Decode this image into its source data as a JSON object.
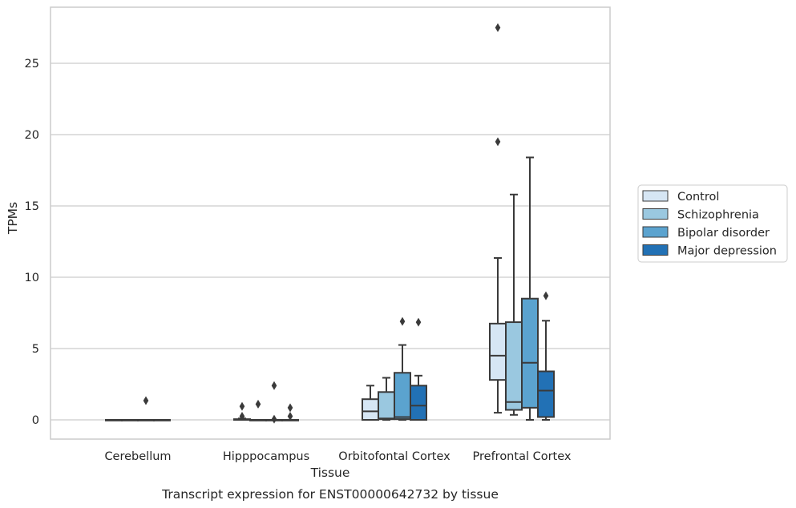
{
  "chart_data": {
    "type": "boxplot",
    "title": "",
    "caption": "Transcript expression for ENST00000642732 by tissue",
    "xlabel": "Tissue",
    "ylabel": "TPMs",
    "ylim": [
      -1.3,
      28.6
    ],
    "yticks": [
      0,
      5,
      10,
      15,
      20,
      25
    ],
    "grid": "horizontal",
    "legend_position": "right",
    "categories": [
      "Cerebellum",
      "Hipppocampus",
      "Orbitofontal Cortex",
      "Prefrontal Cortex"
    ],
    "series": [
      {
        "name": "Control",
        "color": "#d6e6f4",
        "boxes": [
          {
            "min": 0,
            "q1": 0,
            "median": 0,
            "q3": 0,
            "max": 0,
            "outliers": []
          },
          {
            "min": 0,
            "q1": 0,
            "median": 0,
            "q3": 0.05,
            "max": 0.1,
            "outliers": [
              0.25,
              0.95
            ]
          },
          {
            "min": 0,
            "q1": 0,
            "median": 0.6,
            "q3": 1.45,
            "max": 2.4,
            "outliers": []
          },
          {
            "min": 0.5,
            "q1": 2.8,
            "median": 4.5,
            "q3": 6.75,
            "max": 11.35,
            "outliers": [
              19.5,
              27.5
            ]
          }
        ]
      },
      {
        "name": "Schizophrenia",
        "color": "#9ac8e0",
        "boxes": [
          {
            "min": 0,
            "q1": 0,
            "median": 0,
            "q3": 0,
            "max": 0,
            "outliers": []
          },
          {
            "min": 0,
            "q1": 0,
            "median": 0,
            "q3": 0,
            "max": 0,
            "outliers": [
              1.1
            ]
          },
          {
            "min": 0,
            "q1": 0.05,
            "median": 0.1,
            "q3": 1.95,
            "max": 2.95,
            "outliers": []
          },
          {
            "min": 0.35,
            "q1": 0.7,
            "median": 1.25,
            "q3": 6.85,
            "max": 15.8,
            "outliers": []
          }
        ]
      },
      {
        "name": "Bipolar disorder",
        "color": "#5ba3cf",
        "boxes": [
          {
            "min": 0,
            "q1": 0,
            "median": 0,
            "q3": 0,
            "max": 0,
            "outliers": [
              1.35
            ]
          },
          {
            "min": 0,
            "q1": 0,
            "median": 0,
            "q3": 0,
            "max": 0,
            "outliers": [
              2.4,
              0.05
            ]
          },
          {
            "min": 0,
            "q1": 0.05,
            "median": 0.2,
            "q3": 3.3,
            "max": 5.25,
            "outliers": [
              6.9
            ]
          },
          {
            "min": 0,
            "q1": 0.85,
            "median": 4.0,
            "q3": 8.5,
            "max": 18.4,
            "outliers": []
          }
        ]
      },
      {
        "name": "Major depression",
        "color": "#2271b5",
        "boxes": [
          {
            "min": 0,
            "q1": 0,
            "median": 0,
            "q3": 0,
            "max": 0,
            "outliers": []
          },
          {
            "min": 0,
            "q1": 0,
            "median": 0,
            "q3": 0,
            "max": 0,
            "outliers": [
              0.25,
              0.85
            ]
          },
          {
            "min": 0,
            "q1": 0,
            "median": 1.0,
            "q3": 2.4,
            "max": 3.1,
            "outliers": [
              6.85
            ]
          },
          {
            "min": 0,
            "q1": 0.2,
            "median": 2.05,
            "q3": 3.4,
            "max": 6.95,
            "outliers": [
              8.7
            ]
          }
        ]
      }
    ]
  }
}
